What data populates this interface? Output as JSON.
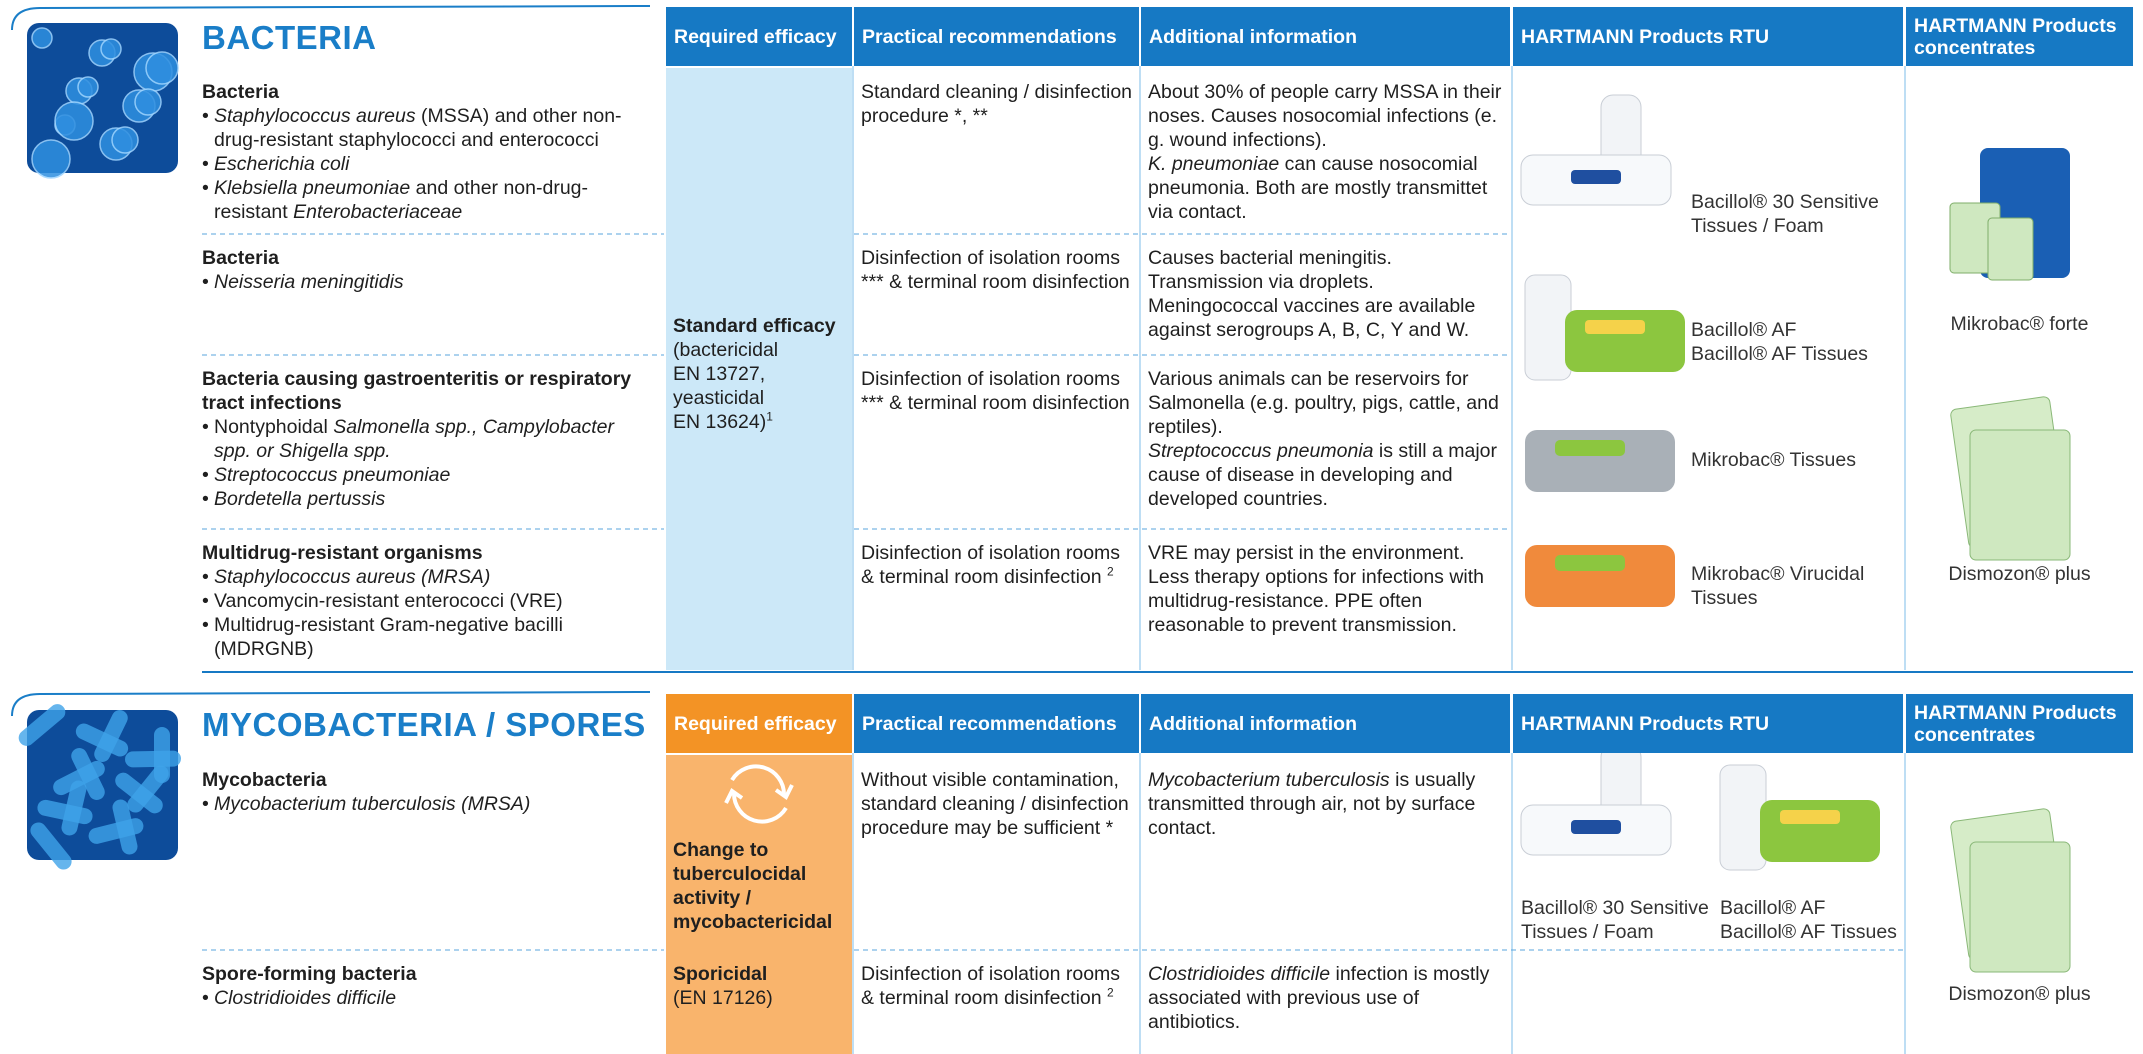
{
  "sections": [
    {
      "title": "BACTERIA",
      "header": [
        "Required efficacy",
        "Practical recommendations",
        "Additional information",
        "HARTMANN Products RTU",
        "HARTMANN Products concentrates"
      ],
      "efficacy": [
        {
          "title": "Standard efficacy",
          "lines": [
            [
              "(bactericidal"
            ],
            [
              "EN 13727,"
            ],
            [
              "yeasticidal"
            ],
            [
              "EN 13624)",
              {
                "sup": "1"
              }
            ]
          ]
        }
      ],
      "rows": [
        {
          "heading": "Bacteria",
          "items": [
            [
              {
                "em": "Staphylococcus aureus"
              },
              " (MSSA) and other non-drug-resistant staphylococci and enterococci"
            ],
            [
              {
                "em": "Escherichia coli"
              }
            ],
            [
              {
                "em": "Klebsiella pneumoniae"
              },
              " and other non-drug-resistant ",
              {
                "em": "Enterobacteriaceae"
              }
            ]
          ],
          "practical": [
            [
              "Standard cleaning / disinfection procedure *, **"
            ]
          ],
          "info": [
            [
              "About 30% of people carry MSSA in their noses. Causes nosocomial infections (e. g. wound infections)."
            ],
            [
              {
                "em": "K. pneumoniae"
              },
              " can cause nosocomial pneumonia. Both are mostly transmittet via contact."
            ]
          ]
        },
        {
          "heading": "Bacteria",
          "items": [
            [
              {
                "em": "Neisseria meningitidis"
              }
            ]
          ],
          "practical": [
            [
              "Disinfection of isolation rooms *** & terminal room disinfection"
            ]
          ],
          "info": [
            [
              "Causes bacterial meningitis. Transmission via droplets. Meningococcal vaccines are available against serogroups A, B, C, Y and W."
            ]
          ]
        },
        {
          "heading": "Bacteria causing gastroenteritis or respiratory tract infections",
          "items": [
            [
              "Nontyphoidal ",
              {
                "em": "Salmonella spp., Campylobacter spp. or Shigella spp."
              }
            ],
            [
              {
                "em": "Streptococcus pneumoniae"
              }
            ],
            [
              {
                "em": "Bordetella pertussis"
              }
            ]
          ],
          "practical": [
            [
              "Disinfection of isolation rooms *** & terminal room disinfection"
            ]
          ],
          "info": [
            [
              "Various animals can be reservoirs for Salmonella (e.g. poultry, pigs, cattle, and reptiles)."
            ],
            [
              {
                "em": "Streptococcus pneumonia"
              },
              " is still a major cause of disease in developing and developed countries."
            ]
          ]
        },
        {
          "heading": "Multidrug-resistant organisms",
          "items": [
            [
              {
                "em": "Staphylococcus aureus (MRSA)"
              }
            ],
            [
              "Vancomycin-resistant enterococci (VRE)"
            ],
            [
              "Multidrug-resistant Gram-negative bacilli (MDRGNB)"
            ]
          ],
          "practical": [
            [
              "Disinfection of isolation rooms & terminal room disinfection ",
              {
                "sup": "2"
              }
            ]
          ],
          "info": [
            [
              "VRE may persist in the environment. Less therapy options for infections with multidrug-resistance. PPE often reasonable to prevent transmission."
            ]
          ]
        }
      ],
      "products_rtu": [
        [
          "Bacillol® 30 Sensitive Tissues / Foam"
        ],
        [
          "Bacillol® AF",
          "Bacillol® AF Tissues"
        ],
        [
          "Mikrobac® Tissues"
        ],
        [
          "Mikrobac® Virucidal Tissues"
        ]
      ],
      "products_concentrates": [
        "Mikrobac® forte",
        "Dismozon® plus"
      ]
    },
    {
      "title": "MYCOBACTERIA / SPORES",
      "header": [
        "Required efficacy",
        "Practical recommendations",
        "Additional information",
        "HARTMANN Products RTU",
        "HARTMANN Products concentrates"
      ],
      "efficacy": [
        {
          "title": "Change to tuberculocidal activity / mycobactericidal",
          "lines": []
        },
        {
          "title": "Sporicidal",
          "lines": [
            [
              "(EN 17126)"
            ]
          ]
        }
      ],
      "rows": [
        {
          "heading": "Mycobacteria",
          "items": [
            [
              {
                "em": "Mycobacterium tuberculosis (MRSA)"
              }
            ]
          ],
          "practical": [
            [
              "Without visible contamination, standard cleaning / disinfection procedure may be sufficient *"
            ]
          ],
          "info": [
            [
              {
                "em": "Mycobacterium tuberculosis"
              },
              " is usually transmitted through air, not by surface contact."
            ]
          ]
        },
        {
          "heading": "Spore-forming bacteria",
          "items": [
            [
              {
                "em": "Clostridioides difficile"
              }
            ]
          ],
          "practical": [
            [
              "Disinfection of isolation rooms & terminal room disinfection ",
              {
                "sup": "2"
              }
            ]
          ],
          "info": [
            [
              {
                "em": "Clostridioides difficile"
              },
              " infection is mostly associated with previous use of antibiotics."
            ]
          ]
        }
      ],
      "products_rtu": [
        [
          "Bacillol® 30 Sensitive",
          "Tissues / Foam"
        ],
        [
          "Bacillol® AF",
          "Bacillol® AF Tissues"
        ]
      ],
      "products_concentrates": [
        "Dismozon® plus"
      ]
    }
  ]
}
